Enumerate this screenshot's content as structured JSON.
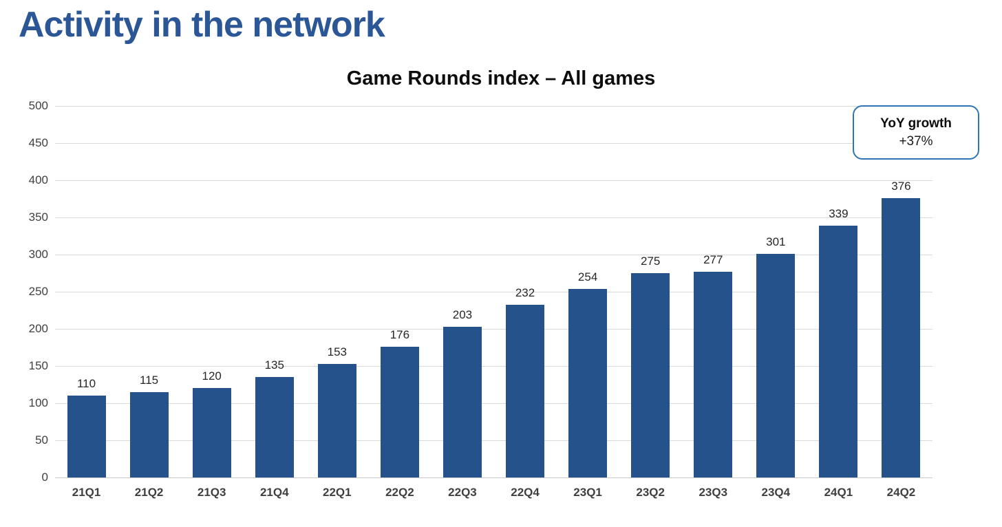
{
  "page": {
    "heading": "Activity in the network"
  },
  "chart": {
    "title": "Game Rounds index – All games",
    "annotation": {
      "line1": "YoY growth",
      "line2": "+37%"
    }
  },
  "chart_data": {
    "type": "bar",
    "title": "Game Rounds index – All games",
    "categories": [
      "21Q1",
      "21Q2",
      "21Q3",
      "21Q4",
      "22Q1",
      "22Q2",
      "22Q3",
      "22Q4",
      "23Q1",
      "23Q2",
      "23Q3",
      "23Q4",
      "24Q1",
      "24Q2"
    ],
    "values": [
      110,
      115,
      120,
      135,
      153,
      176,
      203,
      232,
      254,
      275,
      277,
      301,
      339,
      376
    ],
    "xlabel": "",
    "ylabel": "",
    "ylim": [
      0,
      500
    ],
    "ytick_step": 50,
    "y_ticks": [
      0,
      50,
      100,
      150,
      200,
      250,
      300,
      350,
      400,
      450,
      500
    ],
    "grid": true,
    "legend": "none",
    "annotation_text": "YoY growth +37%"
  },
  "colors": {
    "heading_text": "#2B5797",
    "bar_fill": "#25528B",
    "gridline": "#D9D9D9",
    "axis_text": "#404040",
    "annotation_border": "#2E75B6",
    "background": "#FFFFFF"
  }
}
